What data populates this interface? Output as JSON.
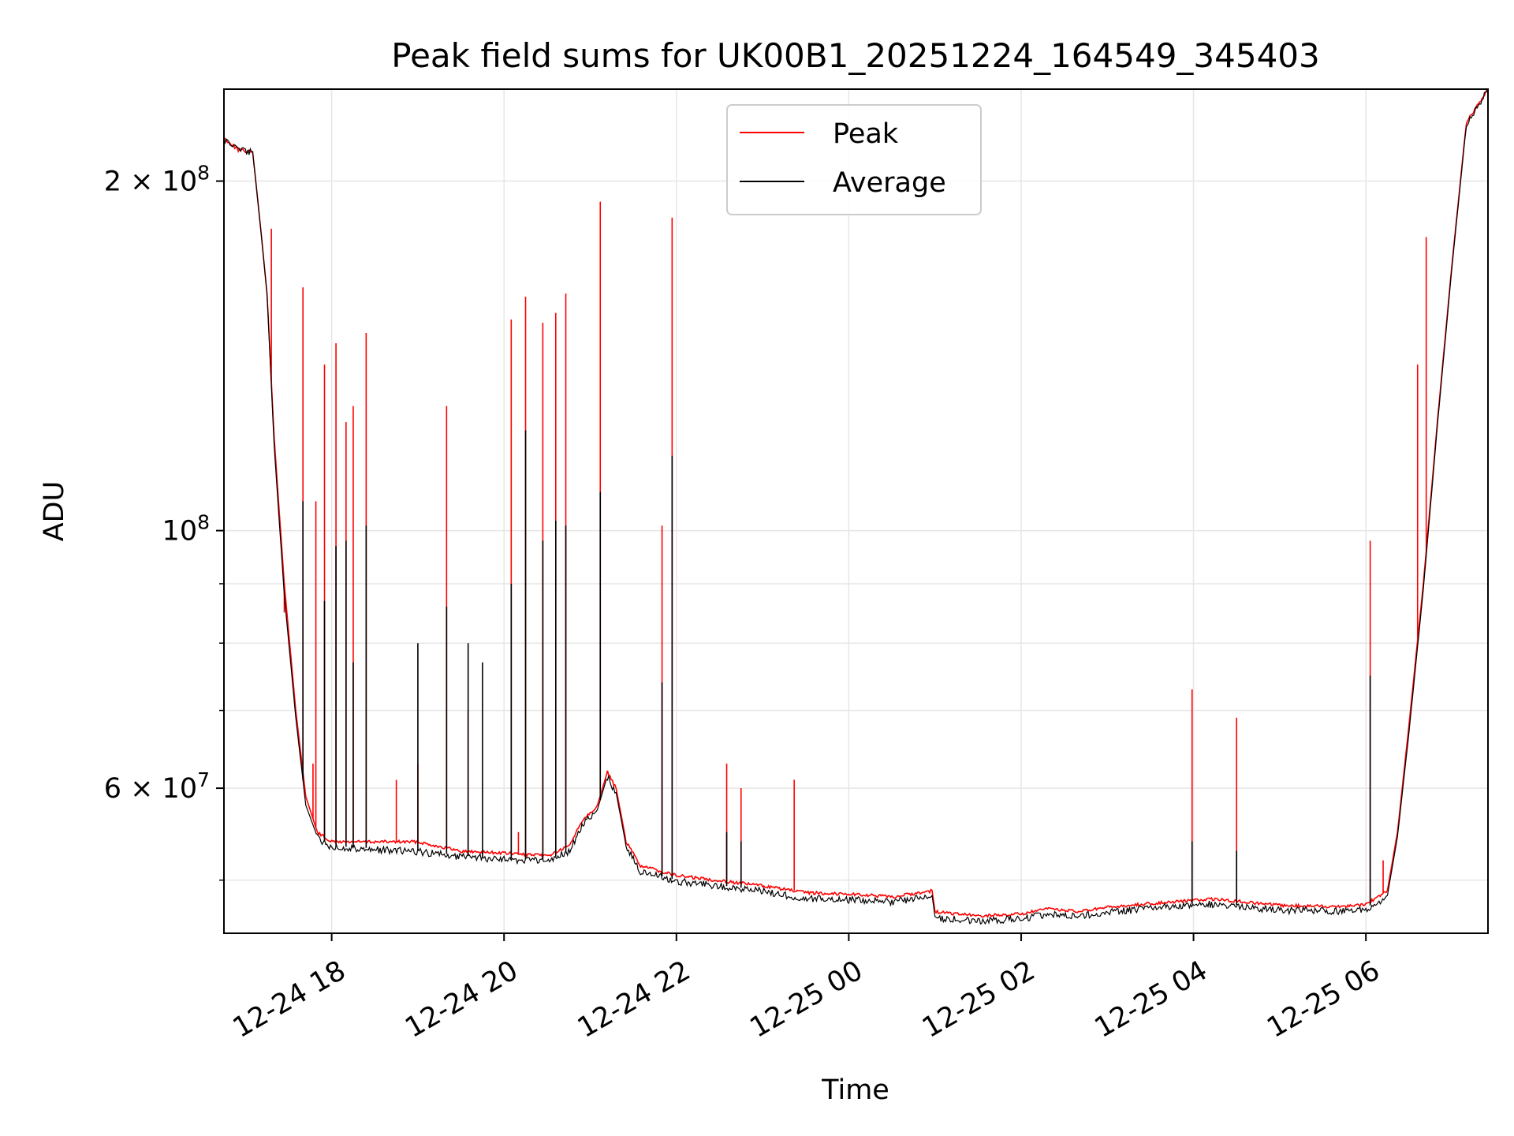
{
  "chart_data": {
    "type": "line",
    "title": "Peak field sums for UK00B1_20251224_164549_345403",
    "xlabel": "Time",
    "ylabel": "ADU",
    "y_scale": "log",
    "xlim": [
      "2025-12-24 16:45",
      "2025-12-25 07:25"
    ],
    "ylim": [
      45000000,
      240000000
    ],
    "grid": true,
    "legend_position": "upper center",
    "x_ticks": [
      {
        "t": "2025-12-24 18:00",
        "label": "12-24 18"
      },
      {
        "t": "2025-12-24 20:00",
        "label": "12-24 20"
      },
      {
        "t": "2025-12-24 22:00",
        "label": "12-24 22"
      },
      {
        "t": "2025-12-25 00:00",
        "label": "12-25 00"
      },
      {
        "t": "2025-12-25 02:00",
        "label": "12-25 02"
      },
      {
        "t": "2025-12-25 04:00",
        "label": "12-25 04"
      },
      {
        "t": "2025-12-25 06:00",
        "label": "12-25 06"
      }
    ],
    "y_ticks_major": [
      {
        "v": 60000000,
        "base": "6 × 10",
        "exp": "7"
      },
      {
        "v": 100000000,
        "base": "10",
        "exp": "8"
      },
      {
        "v": 200000000,
        "base": "2 × 10",
        "exp": "8"
      }
    ],
    "y_ticks_minor": [
      50000000,
      70000000,
      80000000,
      90000000
    ],
    "series": [
      {
        "name": "Peak",
        "color": "#ff0000",
        "baseline": [
          [
            "2025-12-24 16:45",
            218000000
          ],
          [
            "2025-12-24 16:55",
            213000000
          ],
          [
            "2025-12-24 17:05",
            212000000
          ],
          [
            "2025-12-24 17:10",
            185000000
          ],
          [
            "2025-12-24 17:15",
            160000000
          ],
          [
            "2025-12-24 17:20",
            120000000
          ],
          [
            "2025-12-24 17:27",
            90000000
          ],
          [
            "2025-12-24 17:35",
            70000000
          ],
          [
            "2025-12-24 17:42",
            59000000
          ],
          [
            "2025-12-24 17:50",
            55000000
          ],
          [
            "2025-12-24 18:00",
            54000000
          ],
          [
            "2025-12-24 19:00",
            54000000
          ],
          [
            "2025-12-24 19:30",
            53000000
          ],
          [
            "2025-12-24 20:00",
            52800000
          ],
          [
            "2025-12-24 20:30",
            52500000
          ],
          [
            "2025-12-24 20:45",
            53500000
          ],
          [
            "2025-12-24 20:55",
            56500000
          ],
          [
            "2025-12-24 21:05",
            58000000
          ],
          [
            "2025-12-24 21:12",
            62000000
          ],
          [
            "2025-12-24 21:18",
            60000000
          ],
          [
            "2025-12-24 21:25",
            54000000
          ],
          [
            "2025-12-24 21:35",
            51500000
          ],
          [
            "2025-12-24 22:00",
            50500000
          ],
          [
            "2025-12-24 23:00",
            49500000
          ],
          [
            "2025-12-24 23:30",
            48800000
          ],
          [
            "2025-12-25 00:00",
            48700000
          ],
          [
            "2025-12-25 00:30",
            48400000
          ],
          [
            "2025-12-25 00:58",
            49000000
          ],
          [
            "2025-12-25 01:00",
            47000000
          ],
          [
            "2025-12-25 01:30",
            46600000
          ],
          [
            "2025-12-25 02:00",
            46800000
          ],
          [
            "2025-12-25 02:20",
            47300000
          ],
          [
            "2025-12-25 02:40",
            47000000
          ],
          [
            "2025-12-25 03:00",
            47400000
          ],
          [
            "2025-12-25 03:40",
            47900000
          ],
          [
            "2025-12-25 04:15",
            48200000
          ],
          [
            "2025-12-25 05:00",
            47600000
          ],
          [
            "2025-12-25 05:40",
            47500000
          ],
          [
            "2025-12-25 06:00",
            47700000
          ],
          [
            "2025-12-25 06:15",
            49000000
          ],
          [
            "2025-12-25 06:22",
            55000000
          ],
          [
            "2025-12-25 06:30",
            68000000
          ],
          [
            "2025-12-25 06:40",
            90000000
          ],
          [
            "2025-12-25 06:50",
            125000000
          ],
          [
            "2025-12-25 07:00",
            170000000
          ],
          [
            "2025-12-25 07:10",
            225000000
          ],
          [
            "2025-12-25 07:25",
            240000000
          ]
        ],
        "spikes": [
          [
            "2025-12-24 17:18",
            182000000
          ],
          [
            "2025-12-24 17:27",
            85000000
          ],
          [
            "2025-12-24 17:40",
            162000000
          ],
          [
            "2025-12-24 17:47",
            63000000
          ],
          [
            "2025-12-24 17:49",
            106000000
          ],
          [
            "2025-12-24 17:55",
            139000000
          ],
          [
            "2025-12-24 18:03",
            145000000
          ],
          [
            "2025-12-24 18:10",
            124000000
          ],
          [
            "2025-12-24 18:15",
            128000000
          ],
          [
            "2025-12-24 18:24",
            148000000
          ],
          [
            "2025-12-24 18:45",
            61000000
          ],
          [
            "2025-12-24 19:00",
            63000000
          ],
          [
            "2025-12-24 19:20",
            128000000
          ],
          [
            "2025-12-24 19:35",
            70000000
          ],
          [
            "2025-12-24 20:05",
            152000000
          ],
          [
            "2025-12-24 20:10",
            55000000
          ],
          [
            "2025-12-24 20:15",
            159000000
          ],
          [
            "2025-12-24 20:27",
            151000000
          ],
          [
            "2025-12-24 20:36",
            154000000
          ],
          [
            "2025-12-24 20:43",
            160000000
          ],
          [
            "2025-12-24 21:07",
            192000000
          ],
          [
            "2025-12-24 21:50",
            101000000
          ],
          [
            "2025-12-24 21:57",
            186000000
          ],
          [
            "2025-12-24 22:35",
            63000000
          ],
          [
            "2025-12-24 22:45",
            60000000
          ],
          [
            "2025-12-24 23:22",
            61000000
          ],
          [
            "2025-12-25 03:59",
            73000000
          ],
          [
            "2025-12-25 04:30",
            69000000
          ],
          [
            "2025-12-25 06:03",
            98000000
          ],
          [
            "2025-12-25 06:12",
            52000000
          ],
          [
            "2025-12-25 06:36",
            139000000
          ],
          [
            "2025-12-25 06:42",
            179000000
          ]
        ]
      },
      {
        "name": "Average",
        "color": "#000000",
        "baseline": [
          [
            "2025-12-24 16:45",
            218000000
          ],
          [
            "2025-12-24 16:55",
            213000000
          ],
          [
            "2025-12-24 17:05",
            212000000
          ],
          [
            "2025-12-24 17:10",
            185000000
          ],
          [
            "2025-12-24 17:15",
            160000000
          ],
          [
            "2025-12-24 17:20",
            118000000
          ],
          [
            "2025-12-24 17:27",
            88000000
          ],
          [
            "2025-12-24 17:35",
            69000000
          ],
          [
            "2025-12-24 17:42",
            58000000
          ],
          [
            "2025-12-24 17:50",
            54500000
          ],
          [
            "2025-12-24 18:00",
            53500000
          ],
          [
            "2025-12-24 19:00",
            53000000
          ],
          [
            "2025-12-24 19:30",
            52500000
          ],
          [
            "2025-12-24 20:00",
            52200000
          ],
          [
            "2025-12-24 20:30",
            52000000
          ],
          [
            "2025-12-24 20:45",
            53000000
          ],
          [
            "2025-12-24 20:55",
            56000000
          ],
          [
            "2025-12-24 21:05",
            57500000
          ],
          [
            "2025-12-24 21:12",
            61500000
          ],
          [
            "2025-12-24 21:18",
            59500000
          ],
          [
            "2025-12-24 21:25",
            53500000
          ],
          [
            "2025-12-24 21:35",
            51000000
          ],
          [
            "2025-12-24 22:00",
            50000000
          ],
          [
            "2025-12-24 23:00",
            49000000
          ],
          [
            "2025-12-24 23:30",
            48300000
          ],
          [
            "2025-12-25 00:00",
            48200000
          ],
          [
            "2025-12-25 00:30",
            48000000
          ],
          [
            "2025-12-25 00:58",
            48500000
          ],
          [
            "2025-12-25 01:00",
            46500000
          ],
          [
            "2025-12-25 01:30",
            46200000
          ],
          [
            "2025-12-25 02:00",
            46400000
          ],
          [
            "2025-12-25 02:20",
            46900000
          ],
          [
            "2025-12-25 02:40",
            46600000
          ],
          [
            "2025-12-25 03:00",
            47000000
          ],
          [
            "2025-12-25 03:40",
            47500000
          ],
          [
            "2025-12-25 04:15",
            47800000
          ],
          [
            "2025-12-25 05:00",
            47200000
          ],
          [
            "2025-12-25 05:40",
            47100000
          ],
          [
            "2025-12-25 06:00",
            47300000
          ],
          [
            "2025-12-25 06:15",
            48500000
          ],
          [
            "2025-12-25 06:22",
            54500000
          ],
          [
            "2025-12-25 06:30",
            67000000
          ],
          [
            "2025-12-25 06:40",
            89000000
          ],
          [
            "2025-12-25 06:50",
            124000000
          ],
          [
            "2025-12-25 07:00",
            169000000
          ],
          [
            "2025-12-25 07:10",
            224000000
          ],
          [
            "2025-12-25 07:25",
            240000000
          ]
        ],
        "spikes": [
          [
            "2025-12-24 17:40",
            106000000
          ],
          [
            "2025-12-24 17:55",
            87000000
          ],
          [
            "2025-12-24 18:03",
            97000000
          ],
          [
            "2025-12-24 18:10",
            98000000
          ],
          [
            "2025-12-24 18:15",
            77000000
          ],
          [
            "2025-12-24 18:24",
            101000000
          ],
          [
            "2025-12-24 19:00",
            80000000
          ],
          [
            "2025-12-24 19:20",
            86000000
          ],
          [
            "2025-12-24 19:35",
            80000000
          ],
          [
            "2025-12-24 19:45",
            77000000
          ],
          [
            "2025-12-24 20:05",
            90000000
          ],
          [
            "2025-12-24 20:15",
            122000000
          ],
          [
            "2025-12-24 20:27",
            98000000
          ],
          [
            "2025-12-24 20:36",
            102000000
          ],
          [
            "2025-12-24 20:43",
            101000000
          ],
          [
            "2025-12-24 21:07",
            108000000
          ],
          [
            "2025-12-24 21:50",
            74000000
          ],
          [
            "2025-12-24 21:57",
            116000000
          ],
          [
            "2025-12-24 22:35",
            55000000
          ],
          [
            "2025-12-24 22:45",
            54000000
          ],
          [
            "2025-12-25 03:59",
            54000000
          ],
          [
            "2025-12-25 04:30",
            53000000
          ],
          [
            "2025-12-25 06:03",
            75000000
          ]
        ]
      }
    ]
  }
}
